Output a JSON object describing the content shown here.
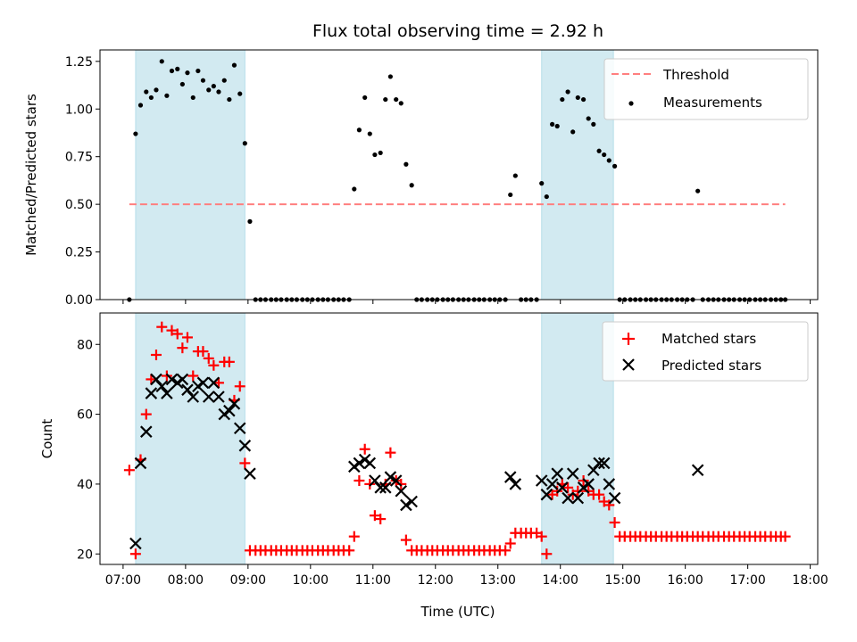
{
  "chart_data": [
    {
      "type": "scatter",
      "title": "Flux total observing time = 2.92 h",
      "ylabel": "Matched/Predicted stars",
      "xlabel": "",
      "xlim": [
        6.63,
        18.12
      ],
      "ylim": [
        0,
        1.31
      ],
      "yticks": [
        0,
        0.25,
        0.5,
        0.75,
        1.0,
        1.25
      ],
      "ytick_labels": [
        "0.00",
        "0.25",
        "0.50",
        "0.75",
        "1.00",
        "1.25"
      ],
      "shaded_intervals": [
        [
          7.2,
          8.95
        ],
        [
          13.7,
          14.85
        ]
      ],
      "shade_color": "#add8e6",
      "legend": {
        "position": "upper right",
        "entries": [
          "Threshold",
          "Measurements"
        ]
      },
      "threshold": {
        "name": "Threshold",
        "y": 0.5,
        "x_range": [
          7.1,
          17.6
        ],
        "color": "#ff7f7f"
      },
      "series": [
        {
          "name": "Measurements",
          "color": "#000000",
          "marker": "dot",
          "x": [
            7.1,
            7.2,
            7.28,
            7.37,
            7.45,
            7.53,
            7.62,
            7.7,
            7.78,
            7.87,
            7.95,
            8.03,
            8.12,
            8.2,
            8.28,
            8.37,
            8.45,
            8.53,
            8.62,
            8.7,
            8.78,
            8.87,
            8.95,
            9.03,
            9.12,
            9.2,
            9.28,
            9.37,
            9.45,
            9.53,
            9.62,
            9.7,
            9.78,
            9.87,
            9.95,
            10.03,
            10.12,
            10.2,
            10.28,
            10.37,
            10.45,
            10.53,
            10.62,
            10.7,
            10.78,
            10.87,
            10.95,
            11.03,
            11.12,
            11.2,
            11.28,
            11.37,
            11.45,
            11.53,
            11.62,
            11.7,
            11.78,
            11.87,
            11.95,
            12.03,
            12.12,
            12.2,
            12.28,
            12.37,
            12.45,
            12.53,
            12.62,
            12.7,
            12.78,
            12.87,
            12.95,
            13.03,
            13.12,
            13.2,
            13.28,
            13.37,
            13.45,
            13.53,
            13.62,
            13.7,
            13.78,
            13.87,
            13.95,
            14.03,
            14.12,
            14.2,
            14.28,
            14.37,
            14.45,
            14.53,
            14.62,
            14.7,
            14.78,
            14.87,
            14.95,
            15.03,
            15.12,
            15.2,
            15.28,
            15.37,
            15.45,
            15.53,
            15.62,
            15.7,
            15.78,
            15.87,
            15.95,
            16.03,
            16.12,
            16.2,
            16.28,
            16.37,
            16.45,
            16.53,
            16.62,
            16.7,
            16.78,
            16.87,
            16.95,
            17.03,
            17.12,
            17.2,
            17.28,
            17.37,
            17.45,
            17.53,
            17.6
          ],
          "y": [
            0.0,
            0.87,
            1.02,
            1.09,
            1.06,
            1.1,
            1.25,
            1.07,
            1.2,
            1.21,
            1.13,
            1.19,
            1.06,
            1.2,
            1.15,
            1.1,
            1.12,
            1.09,
            1.15,
            1.05,
            1.23,
            1.08,
            0.82,
            0.41,
            0.0,
            0.0,
            0.0,
            0.0,
            0.0,
            0.0,
            0.0,
            0.0,
            0.0,
            0.0,
            0.0,
            0.0,
            0.0,
            0.0,
            0.0,
            0.0,
            0.0,
            0.0,
            0.0,
            0.58,
            0.89,
            1.06,
            0.87,
            0.76,
            0.77,
            1.05,
            1.17,
            1.05,
            1.03,
            0.71,
            0.6,
            0.0,
            0.0,
            0.0,
            0.0,
            0.0,
            0.0,
            0.0,
            0.0,
            0.0,
            0.0,
            0.0,
            0.0,
            0.0,
            0.0,
            0.0,
            0.0,
            0.0,
            0.0,
            0.55,
            0.65,
            0.0,
            0.0,
            0.0,
            0.0,
            0.61,
            0.54,
            0.92,
            0.91,
            1.05,
            1.09,
            0.88,
            1.06,
            1.05,
            0.95,
            0.92,
            0.78,
            0.76,
            0.73,
            0.7,
            0.0,
            0.0,
            0.0,
            0.0,
            0.0,
            0.0,
            0.0,
            0.0,
            0.0,
            0.0,
            0.0,
            0.0,
            0.0,
            0.0,
            0.0,
            0.57,
            0.0,
            0.0,
            0.0,
            0.0,
            0.0,
            0.0,
            0.0,
            0.0,
            0.0,
            0.0,
            0.0,
            0.0,
            0.0,
            0.0,
            0.0,
            0.0,
            0.0
          ]
        }
      ]
    },
    {
      "type": "scatter",
      "title": "",
      "ylabel": "Count",
      "xlabel": "Time (UTC)",
      "xlim": [
        6.63,
        18.12
      ],
      "ylim": [
        17,
        89
      ],
      "yticks": [
        20,
        40,
        60,
        80
      ],
      "ytick_labels": [
        "20",
        "40",
        "60",
        "80"
      ],
      "xticks": [
        7,
        8,
        9,
        10,
        11,
        12,
        13,
        14,
        15,
        16,
        17,
        18
      ],
      "xtick_labels": [
        "07:00",
        "08:00",
        "09:00",
        "10:00",
        "11:00",
        "12:00",
        "13:00",
        "14:00",
        "15:00",
        "16:00",
        "17:00",
        "18:00"
      ],
      "shaded_intervals": [
        [
          7.2,
          8.95
        ],
        [
          13.7,
          14.85
        ]
      ],
      "shade_color": "#add8e6",
      "legend": {
        "position": "upper right",
        "entries": [
          "Matched stars",
          "Predicted stars"
        ]
      },
      "series": [
        {
          "name": "Matched stars",
          "color": "#ff0000",
          "marker": "plus",
          "x": [
            7.1,
            7.2,
            7.28,
            7.37,
            7.45,
            7.53,
            7.62,
            7.7,
            7.78,
            7.87,
            7.95,
            8.03,
            8.12,
            8.2,
            8.28,
            8.37,
            8.45,
            8.53,
            8.62,
            8.7,
            8.78,
            8.87,
            8.95,
            9.03,
            9.12,
            9.2,
            9.28,
            9.37,
            9.45,
            9.53,
            9.62,
            9.7,
            9.78,
            9.87,
            9.95,
            10.03,
            10.12,
            10.2,
            10.28,
            10.37,
            10.45,
            10.53,
            10.62,
            10.7,
            10.78,
            10.87,
            10.95,
            11.03,
            11.12,
            11.2,
            11.28,
            11.37,
            11.45,
            11.53,
            11.62,
            11.7,
            11.78,
            11.87,
            11.95,
            12.03,
            12.12,
            12.2,
            12.28,
            12.37,
            12.45,
            12.53,
            12.62,
            12.7,
            12.78,
            12.87,
            12.95,
            13.03,
            13.12,
            13.2,
            13.28,
            13.37,
            13.45,
            13.53,
            13.62,
            13.7,
            13.78,
            13.87,
            13.95,
            14.03,
            14.12,
            14.2,
            14.28,
            14.37,
            14.45,
            14.53,
            14.62,
            14.7,
            14.78,
            14.87,
            14.95,
            15.03,
            15.12,
            15.2,
            15.28,
            15.37,
            15.45,
            15.53,
            15.62,
            15.7,
            15.78,
            15.87,
            15.95,
            16.03,
            16.12,
            16.2,
            16.28,
            16.37,
            16.45,
            16.53,
            16.62,
            16.7,
            16.78,
            16.87,
            16.95,
            17.03,
            17.12,
            17.2,
            17.28,
            17.37,
            17.45,
            17.53,
            17.6
          ],
          "y": [
            44,
            20,
            47,
            60,
            70,
            77,
            85,
            71,
            84,
            83,
            79,
            82,
            71,
            78,
            78,
            76,
            74,
            69,
            75,
            75,
            64,
            68,
            46,
            21,
            21,
            21,
            21,
            21,
            21,
            21,
            21,
            21,
            21,
            21,
            21,
            21,
            21,
            21,
            21,
            21,
            21,
            21,
            21,
            25,
            41,
            50,
            40,
            31,
            30,
            40,
            49,
            41,
            40,
            24,
            21,
            21,
            21,
            21,
            21,
            21,
            21,
            21,
            21,
            21,
            21,
            21,
            21,
            21,
            21,
            21,
            21,
            21,
            21,
            23,
            26,
            26,
            26,
            26,
            26,
            25,
            20,
            37,
            38,
            40,
            39,
            37,
            38,
            41,
            38,
            37,
            37,
            35,
            34,
            29,
            25,
            25,
            25,
            25,
            25,
            25,
            25,
            25,
            25,
            25,
            25,
            25,
            25,
            25,
            25,
            25,
            25,
            25,
            25,
            25,
            25,
            25,
            25,
            25,
            25,
            25,
            25,
            25,
            25,
            25,
            25,
            25,
            25
          ]
        },
        {
          "name": "Predicted stars",
          "color": "#000000",
          "marker": "x",
          "x": [
            7.2,
            7.28,
            7.37,
            7.45,
            7.53,
            7.62,
            7.7,
            7.78,
            7.87,
            7.95,
            8.03,
            8.12,
            8.2,
            8.28,
            8.37,
            8.45,
            8.53,
            8.62,
            8.7,
            8.78,
            8.87,
            8.95,
            9.03,
            10.7,
            10.78,
            10.87,
            10.95,
            11.03,
            11.12,
            11.2,
            11.28,
            11.37,
            11.45,
            11.53,
            11.62,
            13.2,
            13.28,
            13.7,
            13.78,
            13.87,
            13.95,
            14.03,
            14.12,
            14.2,
            14.28,
            14.37,
            14.45,
            14.53,
            14.62,
            14.7,
            14.78,
            14.87,
            16.2
          ],
          "y": [
            23,
            46,
            55,
            66,
            70,
            68,
            66,
            70,
            69,
            70,
            67,
            65,
            68,
            69,
            65,
            69,
            65,
            60,
            61,
            63,
            56,
            51,
            43,
            45,
            46,
            47,
            46,
            41,
            39,
            39,
            42,
            41,
            38,
            34,
            35,
            42,
            40,
            41,
            37,
            40,
            43,
            39,
            36,
            43,
            36,
            39,
            40,
            44,
            46,
            46,
            40,
            36,
            44
          ]
        }
      ]
    }
  ]
}
